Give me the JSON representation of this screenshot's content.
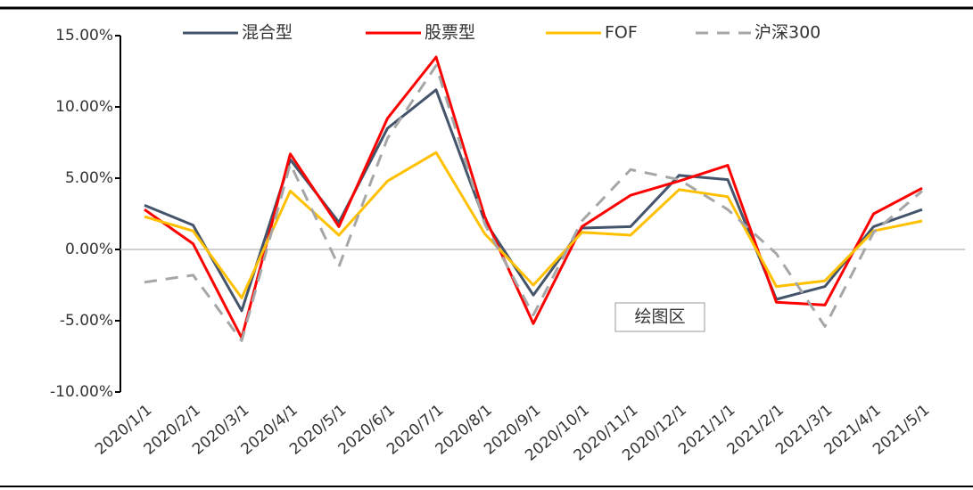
{
  "chart_data": {
    "type": "line",
    "categories": [
      "2020/1/1",
      "2020/2/1",
      "2020/3/1",
      "2020/4/1",
      "2020/5/1",
      "2020/6/1",
      "2020/7/1",
      "2020/8/1",
      "2020/9/1",
      "2020/10/1",
      "2020/11/1",
      "2020/12/1",
      "2021/1/1",
      "2021/2/1",
      "2021/3/1",
      "2021/4/1",
      "2021/5/1"
    ],
    "series": [
      {
        "name": "混合型",
        "color": "#44546a",
        "dash": "solid",
        "values": [
          3.1,
          1.7,
          -4.3,
          6.3,
          1.9,
          8.5,
          11.2,
          2.0,
          -3.2,
          1.5,
          1.6,
          5.2,
          4.9,
          -3.5,
          -2.6,
          1.6,
          2.8
        ]
      },
      {
        "name": "股票型",
        "color": "#ff0000",
        "dash": "solid",
        "values": [
          2.8,
          0.4,
          -6.2,
          6.7,
          1.6,
          9.2,
          13.5,
          2.3,
          -5.2,
          1.6,
          3.8,
          4.8,
          5.9,
          -3.7,
          -3.9,
          2.5,
          4.3
        ]
      },
      {
        "name": "FOF",
        "color": "#ffc000",
        "dash": "solid",
        "values": [
          2.3,
          1.3,
          -3.4,
          4.1,
          1.0,
          4.8,
          6.8,
          1.1,
          -2.5,
          1.2,
          1.0,
          4.2,
          3.7,
          -2.6,
          -2.2,
          1.3,
          2.0
        ]
      },
      {
        "name": "沪深300",
        "color": "#a6a6a6",
        "dash": "dashed",
        "values": [
          -2.3,
          -1.8,
          -6.4,
          6.0,
          -1.2,
          7.8,
          12.9,
          1.8,
          -4.6,
          2.0,
          5.6,
          4.9,
          2.8,
          -0.3,
          -5.4,
          1.2,
          4.1
        ]
      }
    ],
    "ylim": [
      -10,
      15
    ],
    "yticks": [
      {
        "value": -10,
        "label": "-10.00%"
      },
      {
        "value": -5,
        "label": "-5.00%"
      },
      {
        "value": 0,
        "label": "0.00%"
      },
      {
        "value": 5,
        "label": "5.00%"
      },
      {
        "value": 10,
        "label": "10.00%"
      },
      {
        "value": 15,
        "label": "15.00%"
      }
    ],
    "legend": "top",
    "annotation": "绘图区"
  }
}
